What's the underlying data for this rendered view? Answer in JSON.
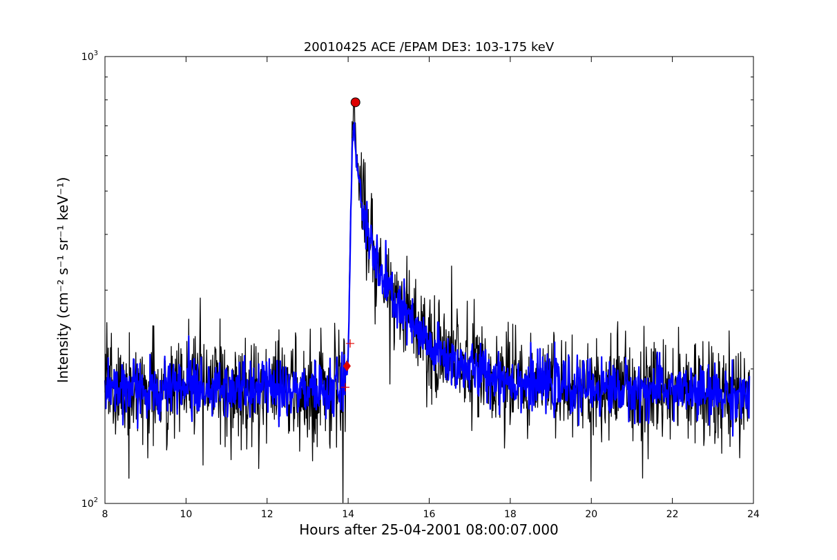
{
  "chart_data": {
    "type": "line",
    "title": "20010425 ACE /EPAM DE3: 103-175 keV",
    "xlabel": "Hours after 25-04-2001 08:00:07.000",
    "ylabel": "Intensity (cm⁻² s⁻¹ sr⁻¹ keV⁻¹)",
    "xlim": [
      8,
      24
    ],
    "ylim": [
      100,
      1000
    ],
    "yscale": "log",
    "x_ticks": [
      8,
      10,
      12,
      14,
      16,
      18,
      20,
      22,
      24
    ],
    "y_tick_labels": [
      {
        "value": 100,
        "base": "10",
        "exp": "2"
      },
      {
        "value": 1000,
        "base": "10",
        "exp": "3"
      }
    ],
    "grid": false,
    "legend": "none",
    "series": [
      {
        "color": "#000000",
        "linewidth": 1.3,
        "x": [
          8.0,
          8.5,
          9.0,
          9.5,
          10.0,
          10.5,
          11.0,
          11.5,
          12.0,
          12.5,
          13.0,
          13.5,
          13.8,
          13.95,
          14.0,
          14.05,
          14.1,
          14.15,
          14.2,
          14.3,
          14.4,
          14.6,
          14.8,
          15.0,
          15.3,
          15.6,
          16.0,
          16.5,
          17.0,
          17.5,
          18.0,
          18.5,
          19.0,
          19.5,
          20.0,
          20.5,
          21.0,
          21.5,
          22.0,
          22.5,
          23.0,
          23.5,
          23.9
        ],
        "y": [
          185,
          180,
          178,
          182,
          184,
          181,
          180,
          178,
          182,
          176,
          180,
          178,
          185,
          195,
          215,
          400,
          700,
          790,
          620,
          520,
          440,
          370,
          330,
          300,
          275,
          250,
          225,
          210,
          200,
          195,
          190,
          187,
          185,
          183,
          183,
          182,
          180,
          180,
          182,
          178,
          177,
          176,
          175
        ],
        "noise": 0.14
      },
      {
        "color": "#0000ff",
        "linewidth": 2.2,
        "x": [
          8.0,
          8.5,
          9.0,
          9.5,
          10.0,
          10.5,
          11.0,
          11.5,
          12.0,
          12.5,
          13.0,
          13.5,
          13.8,
          13.95,
          14.0,
          14.05,
          14.1,
          14.15,
          14.2,
          14.3,
          14.4,
          14.6,
          14.8,
          15.0,
          15.3,
          15.6,
          16.0,
          16.5,
          17.0,
          17.5,
          18.0,
          18.5,
          19.0,
          19.5,
          20.0,
          20.5,
          21.0,
          21.5,
          22.0,
          22.5,
          23.0,
          23.5,
          23.9
        ],
        "y": [
          185,
          180,
          178,
          182,
          184,
          181,
          180,
          178,
          182,
          176,
          180,
          178,
          185,
          195,
          212,
          380,
          640,
          700,
          580,
          500,
          430,
          365,
          325,
          298,
          272,
          248,
          224,
          209,
          199,
          194,
          189,
          186,
          184,
          182,
          182,
          181,
          179,
          179,
          181,
          177,
          176,
          175,
          174
        ],
        "noise": 0.07
      }
    ],
    "markers": [
      {
        "kind": "circle",
        "x": 14.18,
        "y": 790,
        "color": "#dd0000"
      },
      {
        "kind": "diamond",
        "x": 13.97,
        "y": 203,
        "color": "#dd0000"
      },
      {
        "kind": "plus",
        "x": 14.05,
        "y": 228,
        "color": "#dd0000"
      },
      {
        "kind": "plus",
        "x": 13.93,
        "y": 182,
        "color": "#dd0000"
      }
    ]
  }
}
